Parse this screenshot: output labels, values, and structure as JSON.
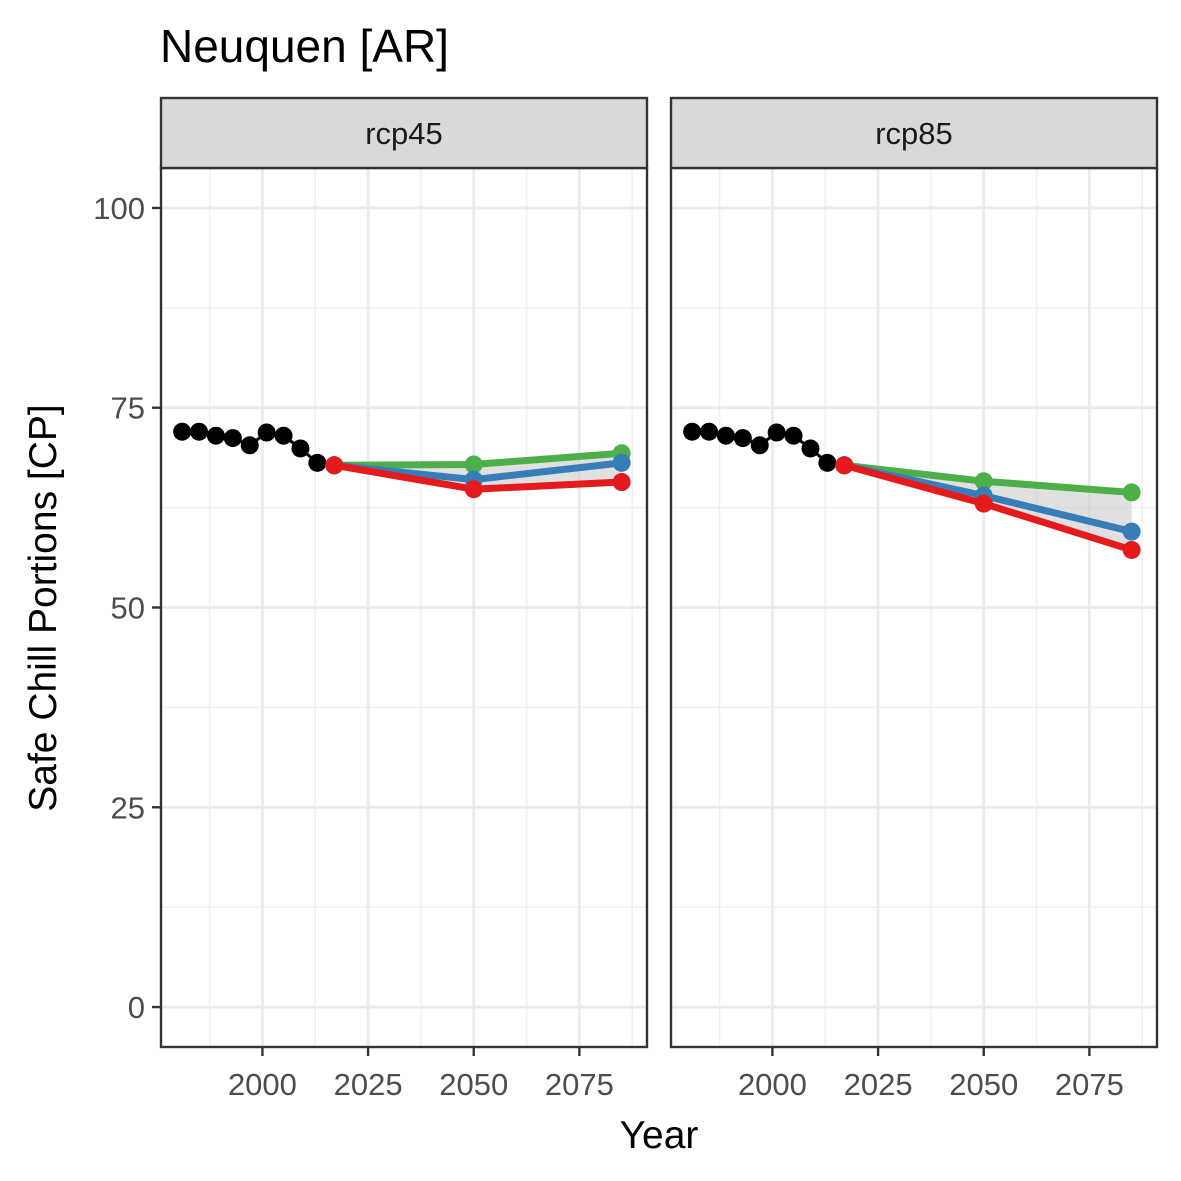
{
  "chart_data": {
    "type": "line",
    "title": "Neuquen [AR]",
    "xlabel": "Year",
    "ylabel": "Safe Chill Portions [CP]",
    "xlim": [
      1976,
      2091
    ],
    "ylim": [
      -5,
      105
    ],
    "xticks": [
      2000,
      2025,
      2050,
      2075
    ],
    "yticks": [
      0,
      25,
      50,
      75,
      100
    ],
    "grid": true,
    "legend": "none",
    "colors": {
      "historic": "#000000",
      "optimistic": "#4DAF4A",
      "median": "#377EB8",
      "pessimistic": "#E41A1C",
      "ribbon": "#cccccc"
    },
    "panels": [
      {
        "label": "rcp45",
        "historic": {
          "x": [
            1981,
            1985,
            1989,
            1993,
            1997,
            2001,
            2005,
            2009,
            2013,
            2017
          ],
          "y": [
            72.0,
            72.0,
            71.5,
            71.2,
            70.3,
            71.9,
            71.5,
            69.9,
            68.1,
            67.8
          ]
        },
        "future": {
          "x": [
            2017,
            2050,
            2085
          ],
          "optimistic": [
            67.8,
            67.9,
            69.3
          ],
          "median": [
            67.8,
            66.0,
            68.1
          ],
          "pessimistic": [
            67.8,
            64.8,
            65.7
          ]
        }
      },
      {
        "label": "rcp85",
        "historic": {
          "x": [
            1981,
            1985,
            1989,
            1993,
            1997,
            2001,
            2005,
            2009,
            2013,
            2017
          ],
          "y": [
            72.0,
            72.0,
            71.5,
            71.2,
            70.3,
            71.9,
            71.5,
            69.9,
            68.1,
            67.8
          ]
        },
        "future": {
          "x": [
            2017,
            2050,
            2085
          ],
          "optimistic": [
            67.8,
            65.8,
            64.4
          ],
          "median": [
            67.8,
            64.0,
            59.5
          ],
          "pessimistic": [
            67.8,
            63.0,
            57.2
          ]
        }
      }
    ]
  }
}
